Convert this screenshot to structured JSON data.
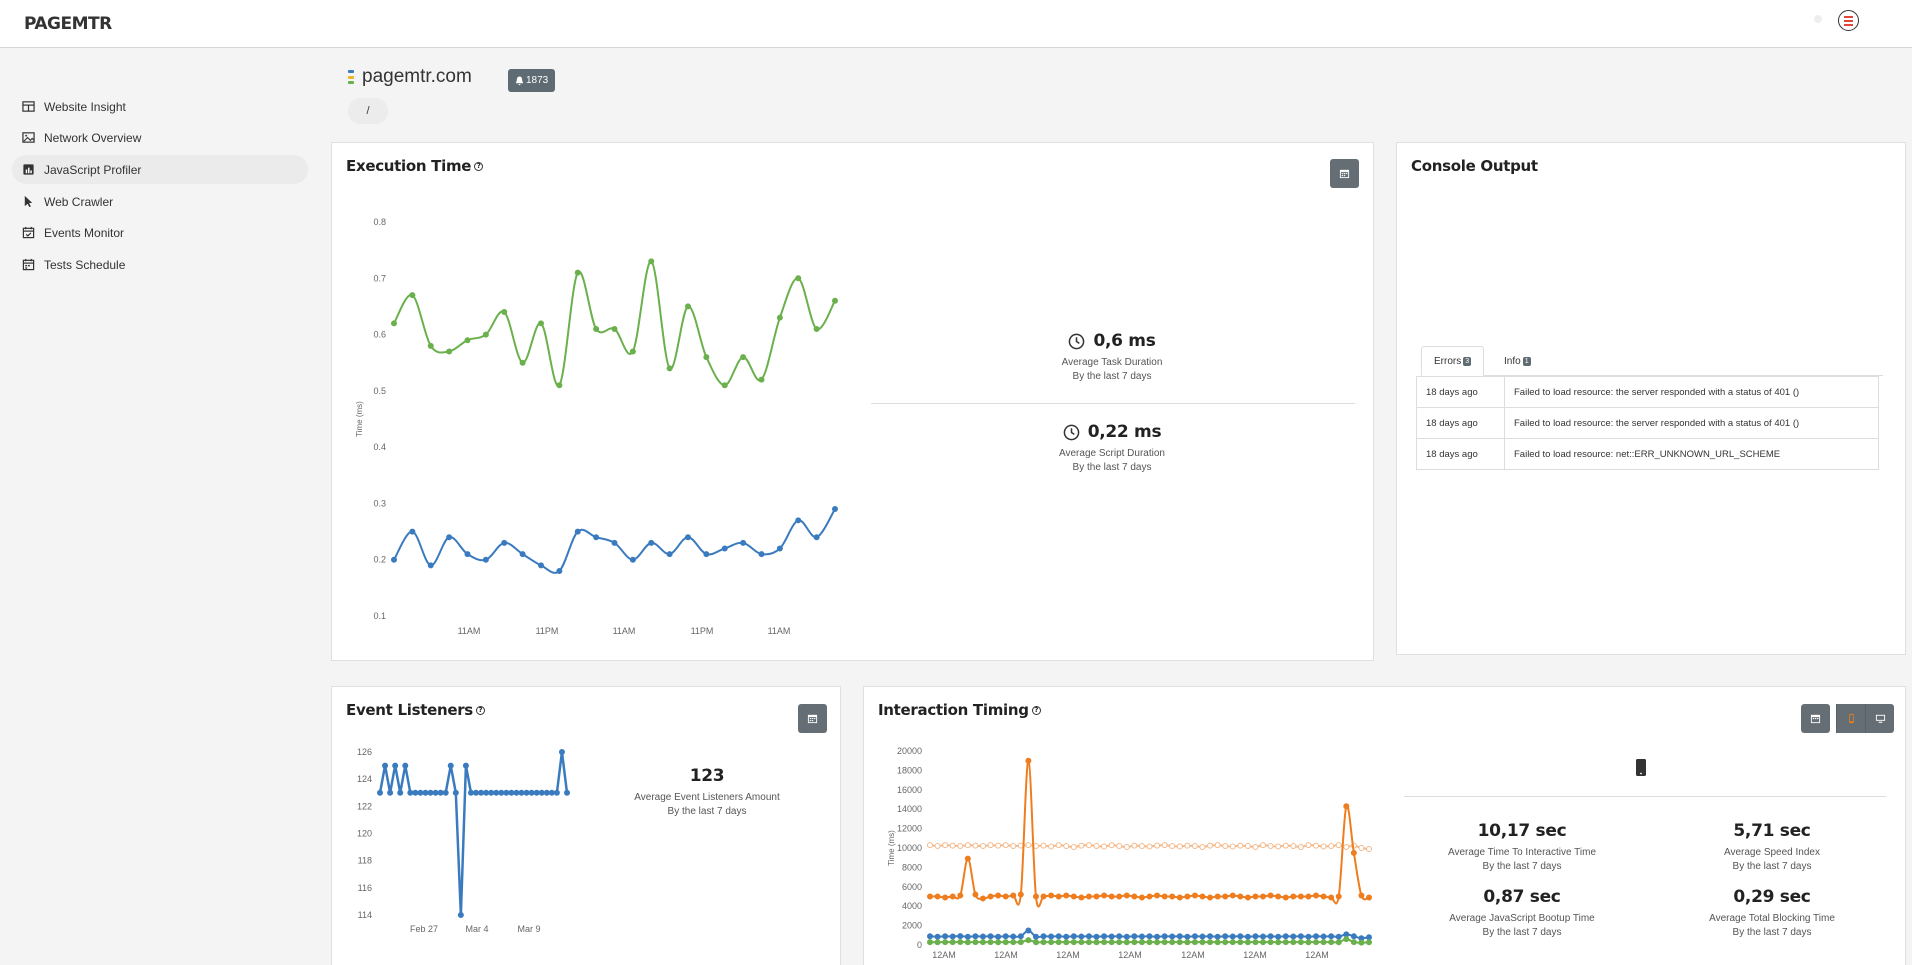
{
  "app": {
    "logo": "PAGEMTR"
  },
  "sidebar": {
    "items": [
      {
        "label": "Website Insight",
        "icon": "table-icon"
      },
      {
        "label": "Network Overview",
        "icon": "image-icon"
      },
      {
        "label": "JavaScript Profiler",
        "icon": "chart-file-icon"
      },
      {
        "label": "Web Crawler",
        "icon": "cursor-icon"
      },
      {
        "label": "Events Monitor",
        "icon": "calendar-check-icon"
      },
      {
        "label": "Tests Schedule",
        "icon": "calendar-icon"
      }
    ]
  },
  "site": {
    "name": "pagemtr.com",
    "badge_count": "1873",
    "breadcrumb": "/"
  },
  "execution": {
    "title": "Execution Time",
    "stats": [
      {
        "value": "0,6 ms",
        "label": "Average Task Duration",
        "sub": "By the last 7 days"
      },
      {
        "value": "0,22 ms",
        "label": "Average Script Duration",
        "sub": "By the last 7 days"
      }
    ]
  },
  "console": {
    "title": "Console Output",
    "tabs": [
      {
        "label": "Errors",
        "count": "3"
      },
      {
        "label": "Info",
        "count": "1"
      }
    ],
    "rows": [
      {
        "time": "18 days ago",
        "message": "Failed to load resource: the server responded with a status of 401 ()"
      },
      {
        "time": "18 days ago",
        "message": "Failed to load resource: the server responded with a status of 401 ()"
      },
      {
        "time": "18 days ago",
        "message": "Failed to load resource: net::ERR_UNKNOWN_URL_SCHEME"
      }
    ]
  },
  "listeners": {
    "title": "Event Listeners",
    "stat": {
      "value": "123",
      "label": "Average Event Listeners Amount",
      "sub": "By the last 7 days"
    }
  },
  "interaction": {
    "title": "Interaction Timing",
    "stats": [
      {
        "value": "10,17 sec",
        "label": "Average Time To Interactive Time",
        "sub": "By the last 7 days"
      },
      {
        "value": "5,71 sec",
        "label": "Average Speed Index",
        "sub": "By the last 7 days"
      },
      {
        "value": "0,87 sec",
        "label": "Average JavaScript Bootup Time",
        "sub": "By the last 7 days"
      },
      {
        "value": "0,29 sec",
        "label": "Average Total Blocking Time",
        "sub": "By the last 7 days"
      }
    ]
  },
  "colors": {
    "green": "#6ab04c",
    "blue": "#3a7bbf",
    "orange": "#ee7d1f",
    "light_orange": "#f3b98a"
  },
  "chart_data": [
    {
      "type": "line",
      "ylabel": "Time (ms)",
      "ylim": [
        0.1,
        0.8
      ],
      "yticks": [
        "0.1",
        "0.2",
        "0.3",
        "0.4",
        "0.5",
        "0.6",
        "0.7",
        "0.8"
      ],
      "x_ticks": [
        "11AM",
        "11PM",
        "11AM",
        "11PM",
        "11AM"
      ],
      "series": [
        {
          "color": "#6ab04c",
          "values": [
            0.62,
            0.67,
            0.58,
            0.57,
            0.59,
            0.6,
            0.64,
            0.55,
            0.62,
            0.51,
            0.71,
            0.61,
            0.61,
            0.57,
            0.73,
            0.54,
            0.65,
            0.56,
            0.51,
            0.56,
            0.52,
            0.63,
            0.7,
            0.61,
            0.66
          ]
        },
        {
          "color": "#3a7bbf",
          "values": [
            0.2,
            0.25,
            0.19,
            0.24,
            0.21,
            0.2,
            0.23,
            0.21,
            0.19,
            0.18,
            0.25,
            0.24,
            0.23,
            0.2,
            0.23,
            0.21,
            0.24,
            0.21,
            0.22,
            0.23,
            0.21,
            0.22,
            0.27,
            0.24,
            0.29
          ]
        }
      ]
    },
    {
      "type": "line",
      "ylim": [
        114,
        126
      ],
      "yticks": [
        "114",
        "116",
        "118",
        "120",
        "122",
        "124",
        "126"
      ],
      "x_ticks": [
        "Feb 27",
        "Mar 4",
        "Mar 9"
      ],
      "series": [
        {
          "color": "#3a7bbf",
          "values": [
            123,
            125,
            123,
            125,
            123,
            125,
            123,
            123,
            123,
            123,
            123,
            123,
            123,
            123,
            125,
            123,
            114,
            125,
            123,
            123,
            123,
            123,
            123,
            123,
            123,
            123,
            123,
            123,
            123,
            123,
            123,
            123,
            123,
            123,
            123,
            123,
            126,
            123
          ]
        }
      ]
    },
    {
      "type": "line",
      "ylabel": "Time (ms)",
      "ylim": [
        0,
        20000
      ],
      "yticks": [
        "0",
        "2000",
        "4000",
        "6000",
        "8000",
        "10000",
        "12000",
        "14000",
        "16000",
        "18000",
        "20000"
      ],
      "x_ticks": [
        "12AM",
        "12AM",
        "12AM",
        "12AM",
        "12AM",
        "12AM",
        "12AM"
      ],
      "series": [
        {
          "color": "#f3b98a",
          "values": [
            10300,
            10200,
            10300,
            10250,
            10200,
            10300,
            10250,
            10200,
            10300,
            10250,
            10300,
            10200,
            10250,
            10300,
            10200,
            10250,
            10150,
            10300,
            10200,
            10100,
            10250,
            10300,
            10200,
            10150,
            10300,
            10200,
            10100,
            10250,
            10200,
            10150,
            10250,
            10300,
            10200,
            10150,
            10250,
            10200,
            10100,
            10250,
            10300,
            10200,
            10150,
            10250,
            10200,
            10100,
            10300,
            10200,
            10150,
            10250,
            10200,
            10100,
            10300,
            10250,
            10150,
            10200,
            10300,
            10100,
            10250,
            10000,
            9900
          ]
        },
        {
          "color": "#ee7d1f",
          "values": [
            5000,
            5000,
            4900,
            5000,
            5100,
            8900,
            5200,
            4800,
            5000,
            5100,
            5000,
            5100,
            5200,
            19000,
            5000,
            5000,
            5100,
            5000,
            5100,
            5000,
            4900,
            5000,
            5000,
            5100,
            5000,
            5000,
            5100,
            5000,
            4900,
            5000,
            5100,
            5000,
            5000,
            4900,
            5000,
            5100,
            5000,
            4900,
            5000,
            5000,
            5100,
            5000,
            4900,
            5000,
            5000,
            5100,
            5000,
            4900,
            5000,
            5000,
            5000,
            5100,
            5000,
            4900,
            5000,
            14300,
            9500,
            5100,
            4900
          ]
        },
        {
          "color": "#3a7bbf",
          "values": [
            900,
            850,
            900,
            880,
            920,
            850,
            900,
            870,
            900,
            850,
            900,
            870,
            900,
            1500,
            850,
            900,
            880,
            900,
            850,
            900,
            870,
            900,
            850,
            900,
            880,
            900,
            850,
            900,
            870,
            900,
            850,
            900,
            880,
            900,
            850,
            900,
            870,
            900,
            850,
            900,
            880,
            900,
            850,
            900,
            870,
            900,
            850,
            900,
            880,
            900,
            850,
            900,
            870,
            900,
            850,
            1100,
            900,
            700,
            800
          ]
        },
        {
          "color": "#6ab04c",
          "values": [
            300,
            280,
            300,
            290,
            310,
            280,
            300,
            290,
            300,
            280,
            300,
            290,
            300,
            500,
            280,
            300,
            290,
            300,
            280,
            300,
            290,
            300,
            280,
            300,
            290,
            300,
            280,
            300,
            290,
            300,
            280,
            300,
            290,
            300,
            280,
            300,
            290,
            300,
            280,
            300,
            290,
            300,
            280,
            300,
            290,
            300,
            280,
            300,
            290,
            300,
            280,
            300,
            290,
            300,
            280,
            600,
            300,
            250,
            280
          ]
        }
      ]
    }
  ]
}
